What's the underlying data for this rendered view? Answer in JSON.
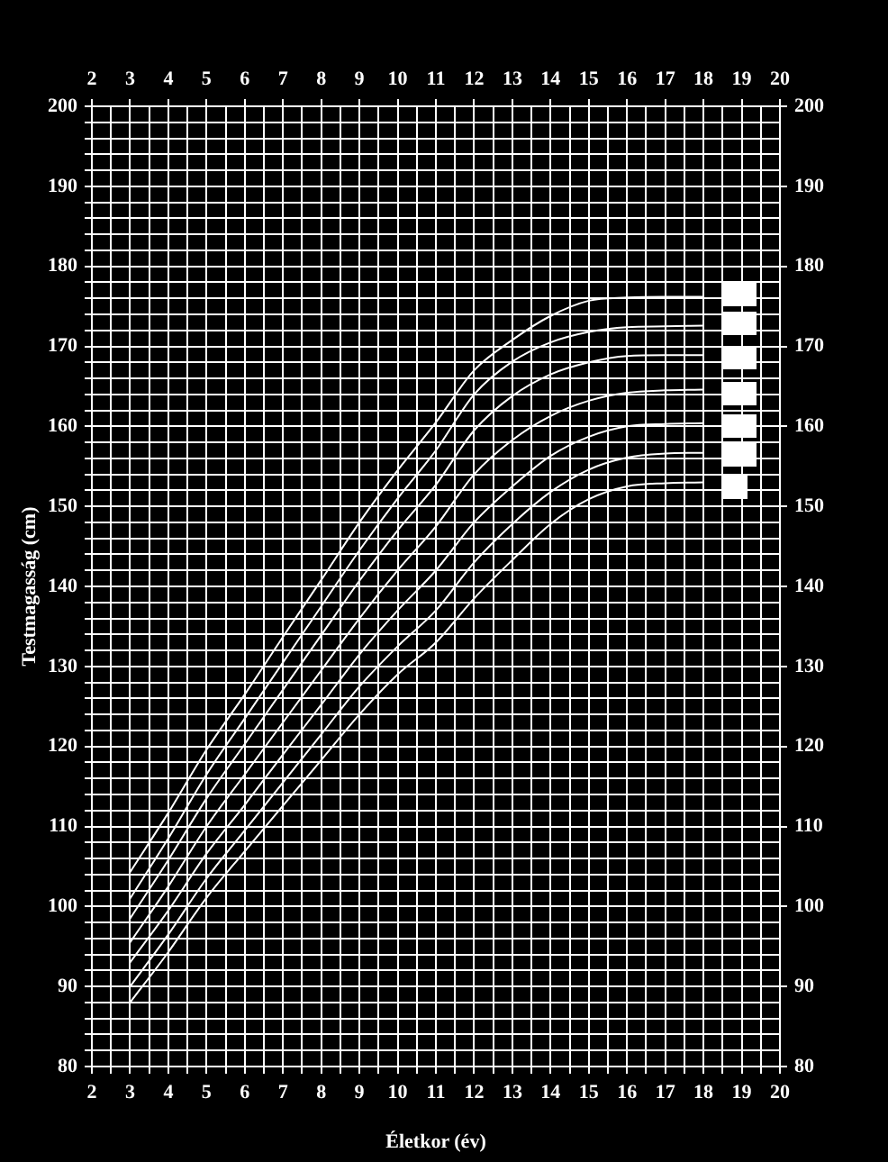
{
  "chart_data": {
    "type": "line",
    "xlabel": "Életkor (év)",
    "ylabel": "Testmagasság (cm)",
    "x": [
      3,
      4,
      5,
      6,
      7,
      8,
      9,
      10,
      11,
      12,
      13,
      14,
      15,
      16,
      17,
      18
    ],
    "series": [
      {
        "color": "#ffffff",
        "values": [
          104.3,
          111.7,
          119.6,
          126.5,
          133.7,
          140.8,
          148,
          154.5,
          160.5,
          167,
          170.8,
          173.8,
          175.7,
          176.1,
          176.2,
          176.2
        ]
      },
      {
        "color": "#ffffff",
        "values": [
          101,
          108.5,
          116.5,
          123.5,
          130.5,
          137.5,
          144.5,
          151,
          157,
          164,
          168.1,
          170.5,
          171.8,
          172.4,
          172.5,
          172.6
        ]
      },
      {
        "color": "#ffffff",
        "values": [
          98.5,
          105.8,
          113.5,
          120.3,
          127.1,
          133.9,
          140.7,
          147,
          152.7,
          159.5,
          163.8,
          166.5,
          168,
          168.8,
          168.9,
          168.9
        ]
      },
      {
        "color": "#ffffff",
        "values": [
          95.5,
          102.5,
          110,
          116.5,
          123,
          129.5,
          136,
          142,
          147.5,
          154,
          158.3,
          161.3,
          163.2,
          164.2,
          164.5,
          164.6
        ]
      },
      {
        "color": "#ffffff",
        "values": [
          93,
          99.5,
          106.6,
          112.7,
          119,
          125.2,
          131.5,
          137,
          142,
          148,
          152.5,
          156.3,
          158.7,
          160,
          160.3,
          160.4
        ]
      },
      {
        "color": "#ffffff",
        "values": [
          90,
          96.5,
          103.5,
          109.5,
          115.5,
          121.5,
          127.5,
          132.5,
          137,
          143,
          147.8,
          151.8,
          154.6,
          156.1,
          156.6,
          156.7
        ]
      },
      {
        "color": "#ffffff",
        "values": [
          88,
          94.3,
          101.1,
          106.9,
          112.6,
          118.3,
          124,
          129,
          133,
          138.5,
          143.3,
          147.8,
          150.9,
          152.5,
          152.9,
          153
        ]
      }
    ],
    "xlim": [
      2,
      20
    ],
    "xticks": [
      2,
      {
        "value": 2.5,
        "label": null
      },
      3,
      {
        "value": 3.5,
        "label": null
      },
      4,
      {
        "value": 4.5,
        "label": null
      },
      5,
      {
        "value": 5.5,
        "label": null
      },
      6,
      {
        "value": 6.5,
        "label": null
      },
      7,
      {
        "value": 7.5,
        "label": null
      },
      8,
      {
        "value": 8.5,
        "label": null
      },
      9,
      {
        "value": 9.5,
        "label": null
      },
      10,
      {
        "value": 10.5,
        "label": null
      },
      11,
      {
        "value": 11.5,
        "label": null
      },
      12,
      {
        "value": 12.5,
        "label": null
      },
      13,
      {
        "value": 13.5,
        "label": null
      },
      14,
      {
        "value": 14.5,
        "label": null
      },
      15,
      {
        "value": 15.5,
        "label": null
      },
      16,
      {
        "value": 16.5,
        "label": null
      },
      17,
      {
        "value": 17.5,
        "label": null
      },
      18,
      {
        "value": 18.5,
        "label": null
      },
      19,
      {
        "value": 19.5,
        "label": null
      },
      20
    ],
    "x2lim": [
      2,
      20
    ],
    "x2ticks": [
      2,
      3,
      4,
      5,
      6,
      7,
      8,
      9,
      10,
      11,
      12,
      13,
      14,
      15,
      16,
      17,
      18,
      19,
      20
    ],
    "ylim": [
      80,
      200
    ],
    "yticks": [
      80,
      {
        "value": 82,
        "label": null
      },
      {
        "value": 84,
        "label": null
      },
      {
        "value": 86,
        "label": null
      },
      {
        "value": 88,
        "label": null
      },
      90,
      {
        "value": 92,
        "label": null
      },
      {
        "value": 94,
        "label": null
      },
      {
        "value": 96,
        "label": null
      },
      {
        "value": 98,
        "label": null
      },
      100,
      {
        "value": 102,
        "label": null
      },
      {
        "value": 104,
        "label": null
      },
      {
        "value": 106,
        "label": null
      },
      {
        "value": 108,
        "label": null
      },
      110,
      {
        "value": 112,
        "label": null
      },
      {
        "value": 114,
        "label": null
      },
      {
        "value": 116,
        "label": null
      },
      {
        "value": 118,
        "label": null
      },
      120,
      {
        "value": 122,
        "label": null
      },
      {
        "value": 124,
        "label": null
      },
      {
        "value": 126,
        "label": null
      },
      {
        "value": 128,
        "label": null
      },
      130,
      {
        "value": 132,
        "label": null
      },
      {
        "value": 134,
        "label": null
      },
      {
        "value": 136,
        "label": null
      },
      {
        "value": 138,
        "label": null
      },
      140,
      {
        "value": 142,
        "label": null
      },
      {
        "value": 144,
        "label": null
      },
      {
        "value": 146,
        "label": null
      },
      {
        "value": 148,
        "label": null
      },
      150,
      {
        "value": 152,
        "label": null
      },
      {
        "value": 154,
        "label": null
      },
      {
        "value": 156,
        "label": null
      },
      {
        "value": 158,
        "label": null
      },
      160,
      {
        "value": 162,
        "label": null
      },
      {
        "value": 164,
        "label": null
      },
      {
        "value": 166,
        "label": null
      },
      {
        "value": 168,
        "label": null
      },
      170,
      {
        "value": 172,
        "label": null
      },
      {
        "value": 174,
        "label": null
      },
      {
        "value": 176,
        "label": null
      },
      {
        "value": 178,
        "label": null
      },
      180,
      {
        "value": 182,
        "label": null
      },
      {
        "value": 184,
        "label": null
      },
      {
        "value": 186,
        "label": null
      },
      {
        "value": 188,
        "label": null
      },
      190,
      {
        "value": 192,
        "label": null
      },
      {
        "value": 194,
        "label": null
      },
      {
        "value": 196,
        "label": null
      },
      {
        "value": 198,
        "label": null
      },
      200
    ],
    "y2lim": [
      80,
      200
    ],
    "y2ticks": [
      80,
      90,
      100,
      110,
      120,
      130,
      140,
      150,
      160,
      170,
      180,
      190,
      200
    ],
    "grid": true,
    "legend": false,
    "marker": "none",
    "line_style": "solid"
  }
}
